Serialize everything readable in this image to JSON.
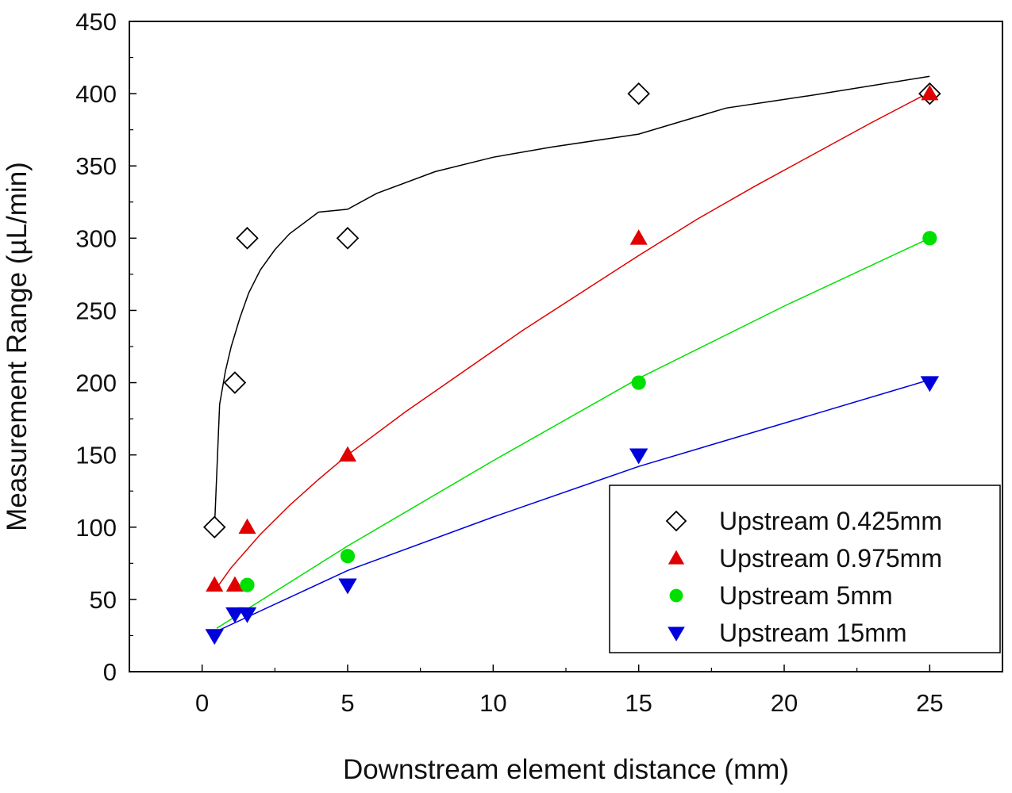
{
  "chart_data": {
    "type": "scatter",
    "title": "",
    "xlabel": "Downstream element distance (mm)",
    "ylabel": "Measurement Range (µL/min)",
    "xlim": [
      -2.5,
      27.5
    ],
    "ylim": [
      0,
      450
    ],
    "xticks": [
      0,
      5,
      10,
      15,
      20,
      25
    ],
    "yticks": [
      0,
      50,
      100,
      150,
      200,
      250,
      300,
      350,
      400,
      450
    ],
    "legend_position": "bottom-right",
    "grid": false,
    "series": [
      {
        "name": "Upstream 0.425mm",
        "marker": "open-diamond",
        "color": "#000000",
        "x": [
          0.425,
          1.125,
          1.55,
          5,
          15,
          25
        ],
        "y": [
          100,
          200,
          300,
          300,
          400,
          400
        ],
        "fit_x": [
          0.425,
          0.6,
          0.8,
          1.0,
          1.3,
          1.6,
          2.0,
          2.5,
          3,
          4,
          5,
          6,
          8,
          10,
          12,
          15,
          18,
          21,
          25
        ],
        "fit_y": [
          100,
          185,
          208,
          225,
          245,
          262,
          278,
          292,
          303,
          318,
          320,
          331,
          346,
          356,
          363,
          372,
          390,
          399,
          412
        ]
      },
      {
        "name": "Upstream 0.975mm",
        "marker": "filled-triangle-up",
        "color": "#e00000",
        "x": [
          0.425,
          1.125,
          1.55,
          5,
          15,
          25
        ],
        "y": [
          60,
          60,
          100,
          150,
          300,
          400
        ],
        "fit_x": [
          0.5,
          1,
          2,
          3,
          4,
          5,
          7,
          9,
          11,
          13,
          15,
          17,
          19,
          21,
          23,
          25
        ],
        "fit_y": [
          58,
          72,
          95,
          115,
          133,
          150,
          180,
          208,
          236,
          262,
          288,
          313,
          336,
          358,
          380,
          401
        ]
      },
      {
        "name": "Upstream 5mm",
        "marker": "filled-circle",
        "color": "#00e000",
        "x": [
          1.55,
          5,
          15,
          25
        ],
        "y": [
          60,
          80,
          200,
          300
        ],
        "fit_x": [
          0.5,
          5,
          10,
          15,
          20,
          25
        ],
        "fit_y": [
          30,
          87,
          146,
          203,
          253,
          300
        ]
      },
      {
        "name": "Upstream 15mm",
        "marker": "filled-triangle-down",
        "color": "#0000dd",
        "x": [
          0.425,
          1.125,
          1.55,
          5,
          15,
          25
        ],
        "y": [
          25,
          40,
          40,
          60,
          150,
          200
        ],
        "fit_x": [
          0.5,
          5,
          10,
          15,
          20,
          25
        ],
        "fit_y": [
          28,
          70,
          107,
          142,
          172,
          202
        ]
      }
    ]
  }
}
